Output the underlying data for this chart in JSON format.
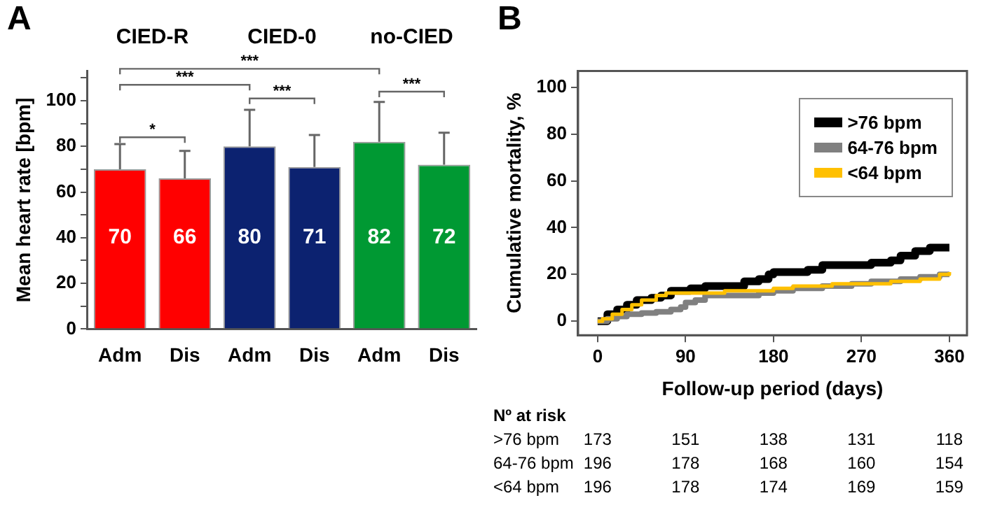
{
  "chart_data": [
    {
      "type": "bar",
      "title": "A",
      "ylabel": "Mean heart rate [bpm]",
      "categories": [
        "Adm",
        "Dis",
        "Adm",
        "Dis",
        "Adm",
        "Dis"
      ],
      "values": [
        70,
        66,
        80,
        71,
        82,
        72
      ],
      "colors": [
        "#ff0000",
        "#ff0000",
        "#0c2270",
        "#0c2270",
        "#009933",
        "#009933"
      ],
      "errors": [
        [
          70,
          81
        ],
        [
          66,
          78
        ],
        [
          80,
          96
        ],
        [
          71,
          85
        ],
        [
          82,
          99.5
        ],
        [
          72,
          86
        ]
      ],
      "data_labels": true,
      "ylim": [
        0,
        113
      ],
      "yticks": [
        0,
        {
          "value": 10,
          "label": null
        },
        20,
        {
          "value": 30,
          "label": null
        },
        40,
        {
          "value": 50,
          "label": null
        },
        60,
        {
          "value": 70,
          "label": null
        },
        80,
        {
          "value": 90,
          "label": null
        },
        100,
        {
          "value": 110,
          "label": null
        }
      ],
      "grid": false,
      "legend": false,
      "annotations": [
        "CIED-R",
        "CIED-0",
        "no-CIED",
        "*",
        "***",
        "***",
        "***",
        "***"
      ]
    },
    {
      "type": "step",
      "title": "B",
      "xlabel": "Follow-up period (days)",
      "ylabel": "Cumulative mortality, %",
      "xlim": [
        -20,
        378
      ],
      "xticks": [
        0,
        90,
        180,
        270,
        360
      ],
      "ylim": [
        -6,
        107
      ],
      "yticks": [
        0,
        20,
        40,
        60,
        80,
        100
      ],
      "grid": false,
      "legend": "top right",
      "marker": "none",
      "line_style": "solid",
      "series": [
        {
          "name": ">76 bpm",
          "color": "#000000",
          "x": [
            0,
            5,
            10,
            20,
            30,
            40,
            55,
            65,
            75,
            90,
            95,
            110,
            140,
            150,
            165,
            175,
            180,
            200,
            215,
            230,
            250,
            265,
            280,
            300,
            310,
            325,
            340,
            360
          ],
          "values": [
            0,
            0,
            3,
            5,
            7,
            9,
            10,
            11,
            13,
            13,
            14,
            15,
            15,
            17,
            18,
            20,
            21,
            21,
            22,
            24,
            24,
            24,
            25,
            26,
            28,
            30,
            31.5,
            31.5
          ]
        },
        {
          "name": "64-76 bpm",
          "color": "#808080",
          "x": [
            0,
            10,
            20,
            30,
            45,
            60,
            75,
            85,
            90,
            100,
            110,
            150,
            165,
            180,
            200,
            230,
            260,
            280,
            310,
            330,
            350,
            360
          ],
          "values": [
            0,
            1,
            2,
            3,
            3.5,
            4,
            5,
            6,
            8,
            9,
            11,
            11,
            12,
            13,
            14,
            15,
            16,
            17,
            18,
            19,
            20,
            20
          ]
        },
        {
          "name": "<64 bpm",
          "color": "#ffc000",
          "x": [
            0,
            5,
            15,
            25,
            35,
            45,
            60,
            70,
            100,
            130,
            160,
            180,
            200,
            220,
            240,
            280,
            300,
            330,
            350,
            360
          ],
          "values": [
            0,
            1,
            3,
            5,
            7,
            9,
            11,
            12,
            12,
            13,
            13,
            14,
            15,
            15,
            16,
            16,
            17,
            18,
            20,
            21
          ]
        }
      ],
      "annotations": [
        "Nº at risk",
        ">76 bpm",
        "173",
        "151",
        "138",
        "131",
        "118",
        "64-76 bpm",
        "196",
        "178",
        "168",
        "160",
        "154",
        "<64 bpm",
        "196",
        "178",
        "174",
        "169",
        "159"
      ]
    }
  ]
}
